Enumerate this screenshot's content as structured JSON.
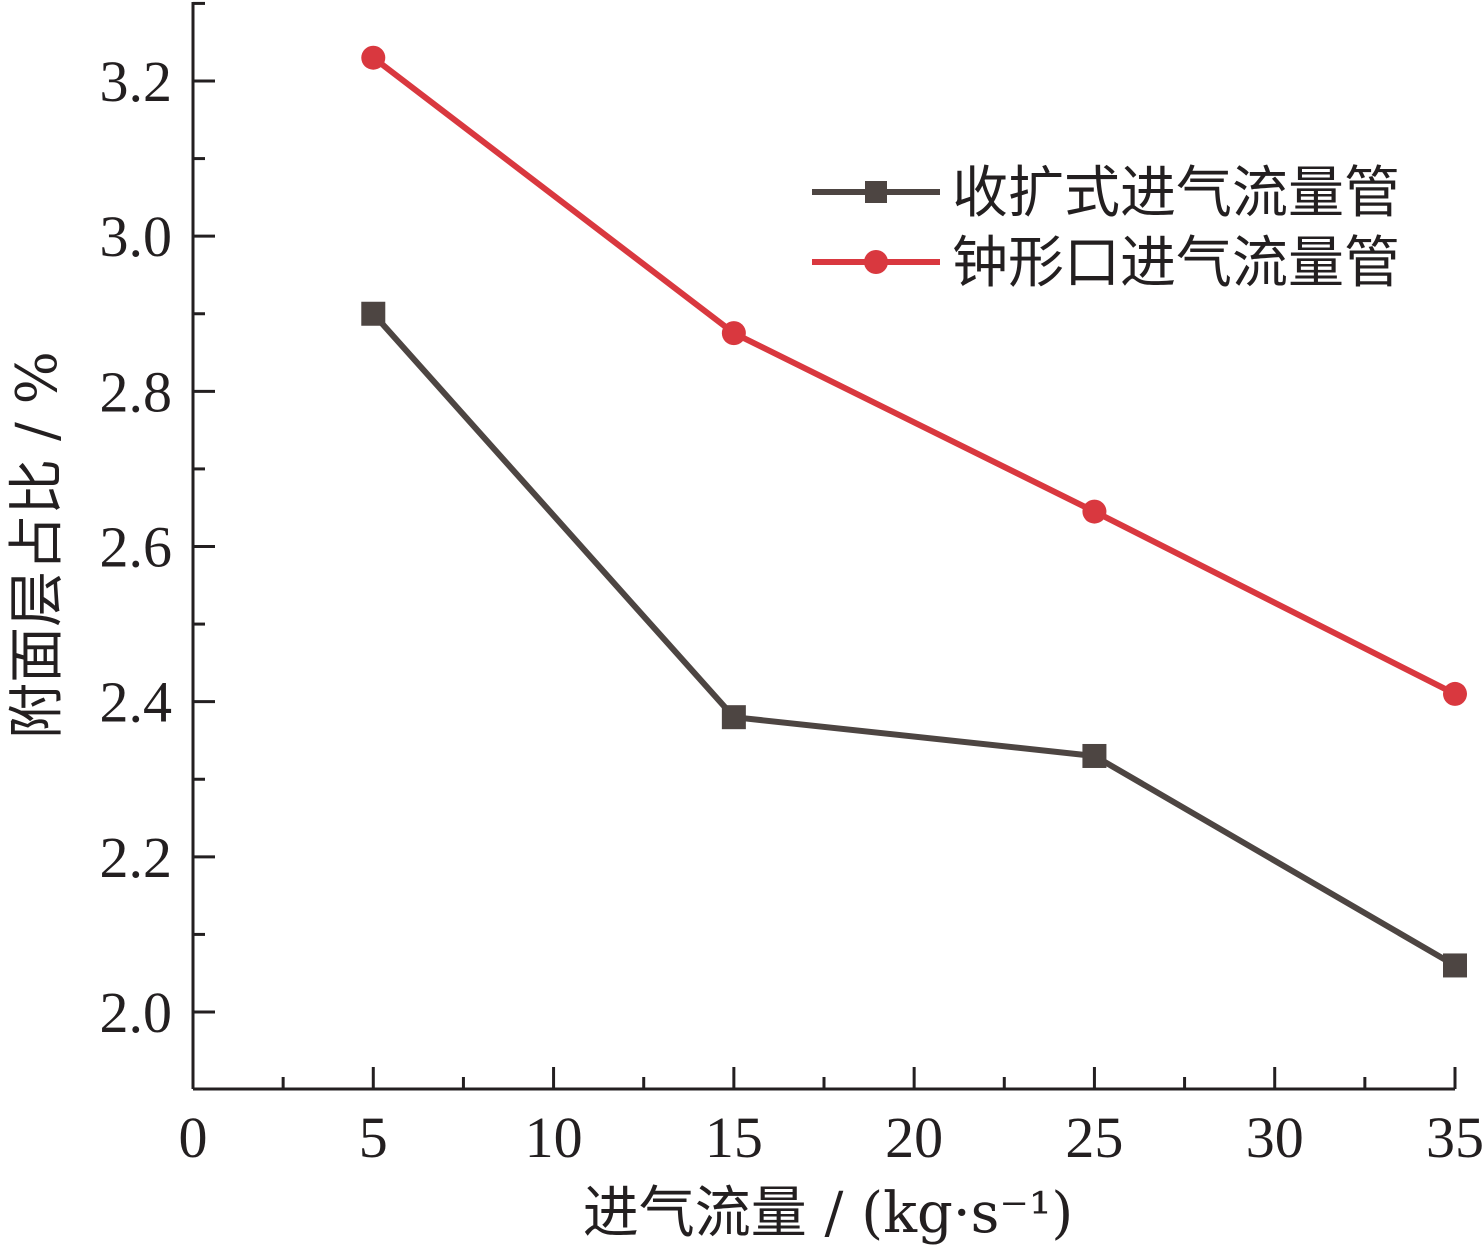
{
  "chart_data": {
    "type": "line",
    "title": "",
    "xlabel": "进气流量 / (kg·s⁻¹)",
    "ylabel": "附面层占比 / %",
    "xlim": [
      0,
      35
    ],
    "ylim": [
      1.9,
      3.3
    ],
    "x_ticks": [
      0,
      5,
      10,
      15,
      20,
      25,
      30,
      35
    ],
    "x_tick_labels": [
      "0",
      "5",
      "10",
      "15",
      "20",
      "25",
      "30",
      "35"
    ],
    "y_ticks": [
      2.0,
      2.2,
      2.4,
      2.6,
      2.8,
      3.0,
      3.2
    ],
    "y_tick_labels": [
      "2.0",
      "2.2",
      "2.4",
      "2.6",
      "2.8",
      "3.0",
      "3.2"
    ],
    "grid": false,
    "legend_position": "top-right",
    "series": [
      {
        "name": "收扩式进气流量管",
        "color": "#4d4542",
        "marker": "square",
        "x": [
          5,
          15,
          25,
          35
        ],
        "y": [
          2.9,
          2.38,
          2.33,
          2.06
        ]
      },
      {
        "name": "钟形口进气流量管",
        "color": "#d9383f",
        "marker": "circle",
        "x": [
          5,
          15,
          25,
          35
        ],
        "y": [
          3.23,
          2.875,
          2.645,
          2.41
        ]
      }
    ]
  }
}
